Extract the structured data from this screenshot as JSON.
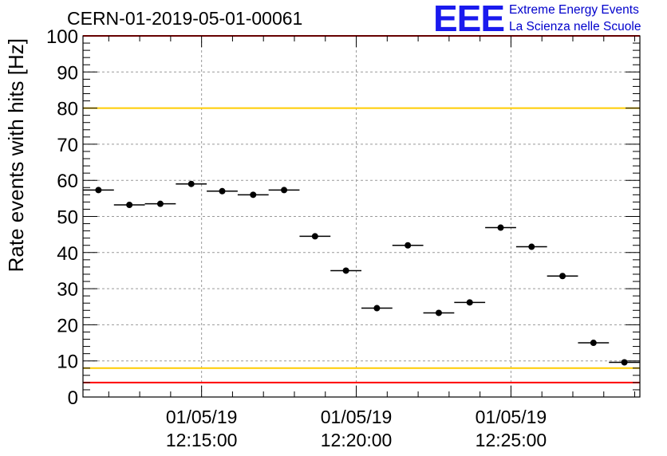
{
  "page": {
    "run_title": "CERN-01-2019-05-01-00061",
    "logo": {
      "mark": "EEE",
      "line1": "Extreme Energy Events",
      "line2": "La Scienza nelle Scuole",
      "color": "#0000cc"
    }
  },
  "chart_data": {
    "type": "scatter",
    "title": "CERN-01-2019-05-01-00061",
    "ylabel": "Rate events with hits [Hz]",
    "xlabel": "",
    "ylim": [
      0,
      100
    ],
    "yticks": [
      0,
      10,
      20,
      30,
      40,
      50,
      60,
      70,
      80,
      90,
      100
    ],
    "xlim": [
      "12:11:10",
      "12:29:10"
    ],
    "xtick_labels": [
      {
        "time": "12:15:00",
        "date": "01/05/19",
        "clock": "12:15:00"
      },
      {
        "time": "12:20:00",
        "date": "01/05/19",
        "clock": "12:20:00"
      },
      {
        "time": "12:25:00",
        "date": "01/05/19",
        "clock": "12:25:00"
      }
    ],
    "grid": true,
    "bin_width_minutes": 1,
    "x_times": [
      "12:11:40",
      "12:12:40",
      "12:13:40",
      "12:14:40",
      "12:15:40",
      "12:16:40",
      "12:17:40",
      "12:18:40",
      "12:19:40",
      "12:20:40",
      "12:21:40",
      "12:22:40",
      "12:23:40",
      "12:24:40",
      "12:25:40",
      "12:26:40",
      "12:27:40",
      "12:28:40"
    ],
    "series": [
      {
        "values": [
          57.3,
          53.2,
          53.5,
          59.0,
          57.0,
          56.0,
          57.3,
          44.5,
          35.0,
          24.6,
          42.0,
          23.3,
          26.2,
          46.9,
          41.6,
          33.5,
          15.0,
          9.6
        ],
        "color": "#000000"
      }
    ],
    "reference_lines": [
      {
        "y": 100,
        "color": "#ff0000"
      },
      {
        "y": 80,
        "color": "#ffcc00"
      },
      {
        "y": 8,
        "color": "#ffcc00"
      },
      {
        "y": 4,
        "color": "#ff0000"
      }
    ]
  }
}
